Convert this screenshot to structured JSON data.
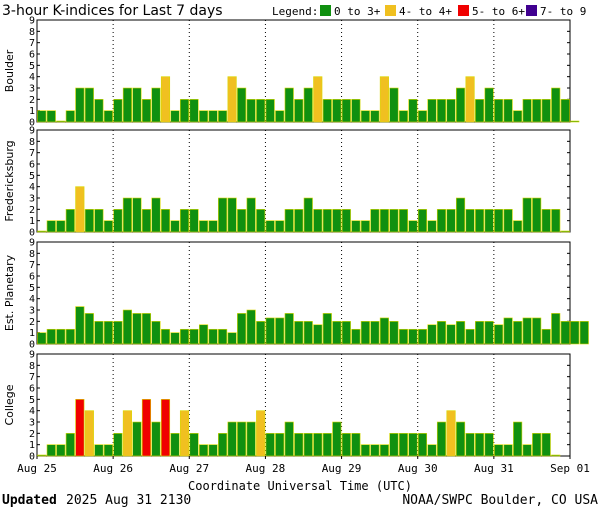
{
  "title": "3-hour K-indices for Last 7 days",
  "legend": {
    "label": "Legend:",
    "items": [
      {
        "label": "0 to 3+",
        "color": "#109010"
      },
      {
        "label": "4- to 4+",
        "color": "#f0c020"
      },
      {
        "label": "5- to 6+",
        "color": "#f00000"
      },
      {
        "label": "7- to 9",
        "color": "#400090"
      }
    ]
  },
  "footer": {
    "updated_label": "Updated",
    "updated_value": "2025 Aug 31 2130",
    "source": "NOAA/SWPC Boulder, CO USA"
  },
  "chart_data": {
    "type": "bar",
    "xlabel": "Coordinate Universal Time (UTC)",
    "x_ticks": [
      "Aug 25",
      "Aug 26",
      "Aug 27",
      "Aug 28",
      "Aug 29",
      "Aug 30",
      "Aug 31",
      "Sep 01"
    ],
    "y_ticks": [
      "0",
      "1",
      "2",
      "3",
      "4",
      "5",
      "6",
      "7",
      "8",
      "9"
    ],
    "ylim": [
      0,
      9
    ],
    "grid": true,
    "bar_outline_color": "#d8d800",
    "color_bins": [
      {
        "min": 0,
        "max": 3.9,
        "color": "#109010"
      },
      {
        "min": 3.9,
        "max": 4.9,
        "color": "#f0c020"
      },
      {
        "min": 4.9,
        "max": 6.9,
        "color": "#f00000"
      },
      {
        "min": 6.9,
        "max": 9,
        "color": "#400090"
      }
    ],
    "panels": [
      {
        "label": "Boulder",
        "values": [
          1,
          1,
          0,
          1,
          3,
          3,
          2,
          1,
          2,
          3,
          3,
          2,
          3,
          4,
          1,
          2,
          2,
          1,
          1,
          1,
          4,
          3,
          2,
          2,
          2,
          1,
          3,
          2,
          3,
          4,
          2,
          2,
          2,
          2,
          1,
          1,
          4,
          3,
          1,
          2,
          1,
          2,
          2,
          2,
          3,
          4,
          2,
          3,
          2,
          2,
          1,
          2,
          2,
          2,
          3,
          2,
          0
        ]
      },
      {
        "label": "Fredericksburg",
        "values": [
          0,
          1,
          1,
          2,
          4,
          2,
          2,
          1,
          2,
          3,
          3,
          2,
          3,
          2,
          1,
          2,
          2,
          1,
          1,
          3,
          3,
          2,
          3,
          2,
          1,
          1,
          2,
          2,
          3,
          2,
          2,
          2,
          2,
          1,
          1,
          2,
          2,
          2,
          2,
          1,
          2,
          1,
          2,
          2,
          3,
          2,
          2,
          2,
          2,
          2,
          1,
          3,
          3,
          2,
          2,
          0
        ]
      },
      {
        "label": "Est. Planetary",
        "values": [
          1,
          1.3,
          1.3,
          1.3,
          3.3,
          2.7,
          2,
          2,
          2,
          3,
          2.7,
          2.7,
          2,
          1.3,
          1,
          1.3,
          1.3,
          1.7,
          1.3,
          1.3,
          1,
          2.7,
          3,
          2,
          2.3,
          2.3,
          2.7,
          2,
          2,
          1.7,
          2.7,
          2,
          2,
          1.3,
          2,
          2,
          2.3,
          2,
          1.3,
          1.3,
          1.3,
          1.7,
          2,
          1.7,
          2,
          1.3,
          2,
          2,
          1.7,
          2.3,
          2,
          2.3,
          2.3,
          1.3,
          2.7,
          2,
          2,
          2
        ]
      },
      {
        "label": "College",
        "values": [
          0,
          1,
          1,
          2,
          5,
          4,
          1,
          1,
          2,
          4,
          3,
          5,
          3,
          5,
          2,
          4,
          2,
          1,
          1,
          2,
          3,
          3,
          3,
          4,
          2,
          2,
          3,
          2,
          2,
          2,
          2,
          3,
          2,
          2,
          1,
          1,
          1,
          2,
          2,
          2,
          2,
          1,
          3,
          4,
          3,
          2,
          2,
          2,
          1,
          1,
          3,
          1,
          2,
          2,
          0
        ]
      }
    ]
  }
}
